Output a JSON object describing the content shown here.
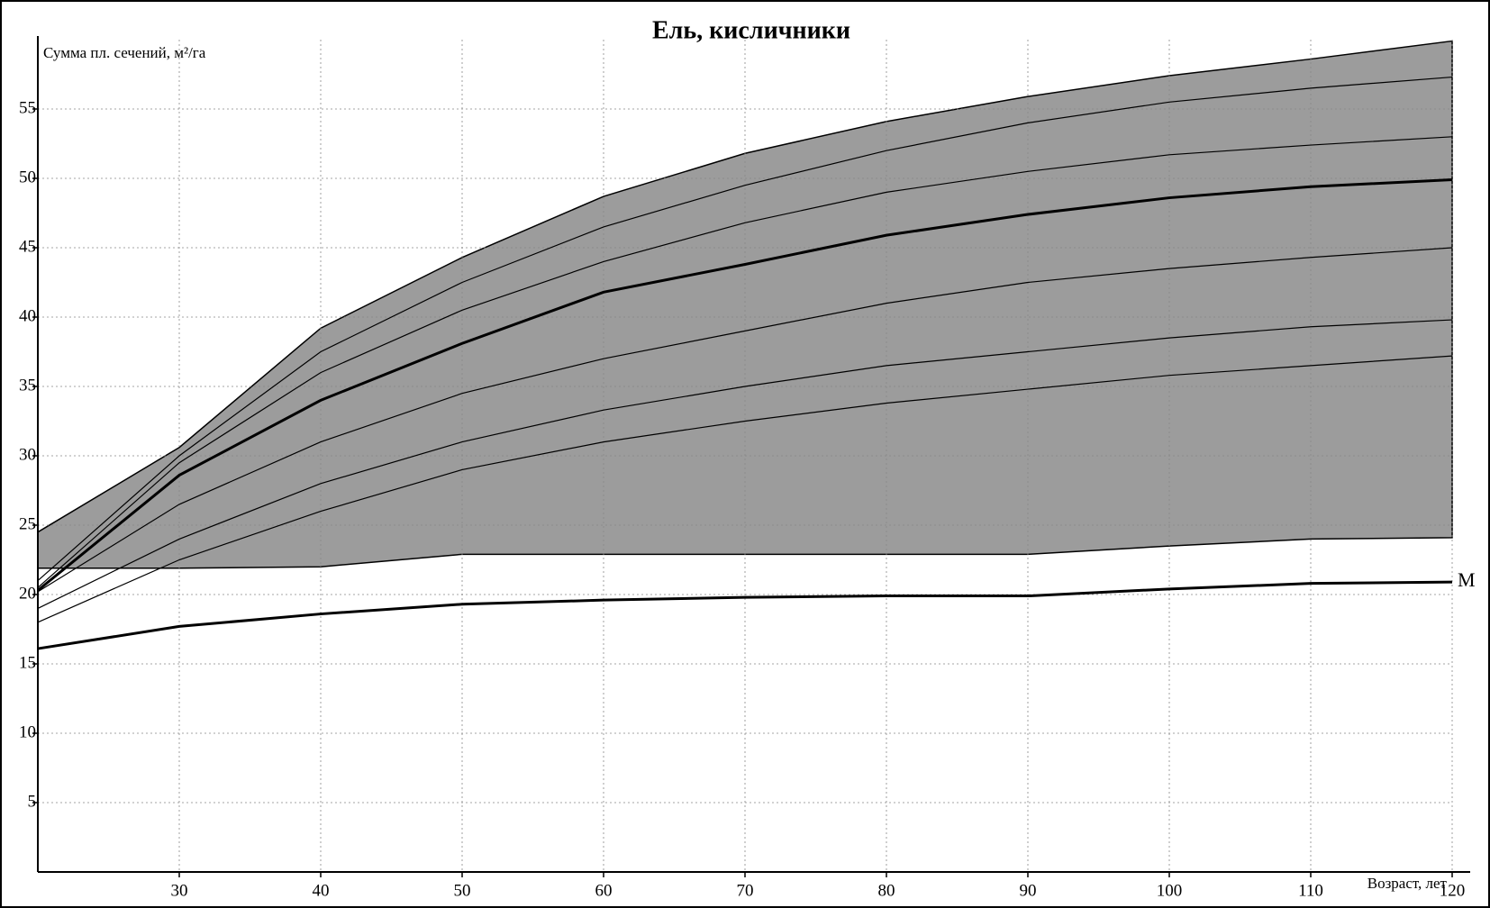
{
  "chart_data": {
    "type": "line",
    "title": "Ель, кисличники",
    "y_label": "Сумма пл. сечений, м²/га",
    "x_label": "Возраст, лет",
    "x": [
      20,
      30,
      40,
      50,
      60,
      70,
      80,
      90,
      100,
      110,
      120
    ],
    "band": {
      "color": "#9c9c9c",
      "upper": [
        24.5,
        30.6,
        39.2,
        44.3,
        48.7,
        51.8,
        54.1,
        55.9,
        57.4,
        58.6,
        59.9
      ],
      "lower": [
        21.9,
        21.9,
        22.0,
        22.9,
        22.9,
        22.9,
        22.9,
        22.9,
        23.5,
        24.0,
        24.1
      ]
    },
    "series": [
      {
        "color": "#000000",
        "width": 1.2,
        "values": [
          21,
          30,
          37.5,
          42.5,
          46.5,
          49.5,
          52,
          54,
          55.5,
          56.5,
          57.3
        ]
      },
      {
        "color": "#000000",
        "width": 1.2,
        "values": [
          20.5,
          29.5,
          36,
          40.5,
          44,
          46.8,
          49,
          50.5,
          51.7,
          52.4,
          53
        ]
      },
      {
        "color": "#000000",
        "width": 3,
        "values": [
          20.3,
          28.6,
          34.0,
          38.1,
          41.8,
          43.8,
          45.9,
          47.4,
          48.6,
          49.4,
          49.9
        ]
      },
      {
        "color": "#000000",
        "width": 1.2,
        "values": [
          20.2,
          26.5,
          31,
          34.5,
          37,
          39,
          41,
          42.5,
          43.5,
          44.3,
          45
        ]
      },
      {
        "color": "#000000",
        "width": 1.2,
        "values": [
          19,
          24,
          28,
          31,
          33.3,
          35,
          36.5,
          37.5,
          38.5,
          39.3,
          39.8
        ]
      },
      {
        "color": "#000000",
        "width": 1.2,
        "values": [
          18,
          22.5,
          26,
          29,
          31,
          32.5,
          33.8,
          34.8,
          35.8,
          36.5,
          37.2
        ]
      },
      {
        "name": "M",
        "color": "#000000",
        "width": 3,
        "values": [
          16.1,
          17.7,
          18.6,
          19.3,
          19.6,
          19.8,
          19.9,
          19.9,
          20.4,
          20.8,
          20.9
        ]
      }
    ],
    "xlim": [
      20,
      120
    ],
    "ylim": [
      0,
      60
    ],
    "xticks": [
      30,
      40,
      50,
      60,
      70,
      80,
      90,
      100,
      110,
      120
    ],
    "yticks": [
      5,
      10,
      15,
      20,
      25,
      30,
      35,
      40,
      45,
      50,
      55
    ],
    "grid": true
  }
}
